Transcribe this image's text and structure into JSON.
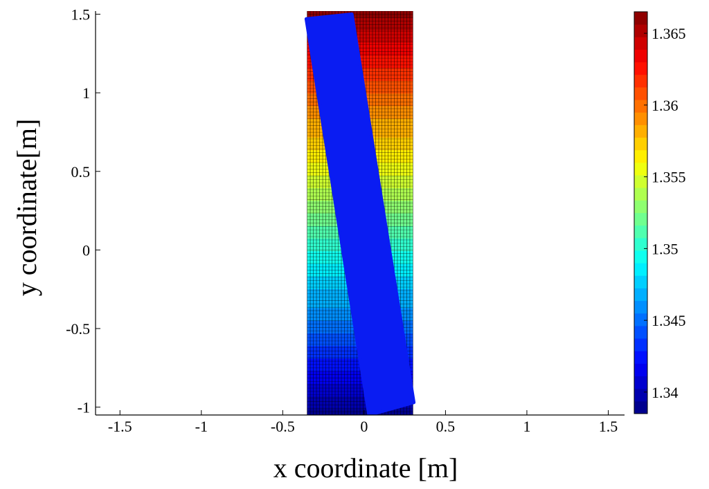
{
  "chart_data": {
    "type": "heatmap",
    "title": "",
    "xlabel": "x coordinate [m]",
    "ylabel": "y coordinate[m]",
    "xlim": [
      -1.65,
      1.6
    ],
    "ylim": [
      -1.05,
      1.52
    ],
    "x_ticks": [
      {
        "value": -1.5,
        "label": "-1.5"
      },
      {
        "value": -1,
        "label": "-1"
      },
      {
        "value": -0.5,
        "label": "-0.5"
      },
      {
        "value": 0,
        "label": "0"
      },
      {
        "value": 0.5,
        "label": "0.5"
      },
      {
        "value": 1,
        "label": "1"
      },
      {
        "value": 1.5,
        "label": "1.5"
      }
    ],
    "y_ticks": [
      {
        "value": -1,
        "label": "-1"
      },
      {
        "value": -0.5,
        "label": "-0.5"
      },
      {
        "value": 0,
        "label": "0"
      },
      {
        "value": 0.5,
        "label": "0.5"
      },
      {
        "value": 1,
        "label": "1"
      },
      {
        "value": 1.5,
        "label": "1.5"
      }
    ],
    "field": {
      "x_range": [
        -0.35,
        0.3
      ],
      "y_range": [
        -1.05,
        1.52
      ],
      "value_at_bottom": 1.339,
      "value_at_top": 1.366,
      "colormap": "jet",
      "mesh_grid": true
    },
    "overlay_bar": {
      "color": "#0a1cf2",
      "corners": [
        [
          -0.355,
          1.47
        ],
        [
          -0.075,
          1.5
        ],
        [
          0.305,
          -0.97
        ],
        [
          0.03,
          -1.05
        ]
      ]
    },
    "colorbar": {
      "range": [
        1.3385,
        1.3665
      ],
      "ticks": [
        {
          "value": 1.34,
          "label": "1.34"
        },
        {
          "value": 1.345,
          "label": "1.345"
        },
        {
          "value": 1.35,
          "label": "1.35"
        },
        {
          "value": 1.355,
          "label": "1.355"
        },
        {
          "value": 1.36,
          "label": "1.36"
        },
        {
          "value": 1.365,
          "label": "1.365"
        }
      ],
      "levels": 32
    },
    "grid": false,
    "legend": "none"
  }
}
